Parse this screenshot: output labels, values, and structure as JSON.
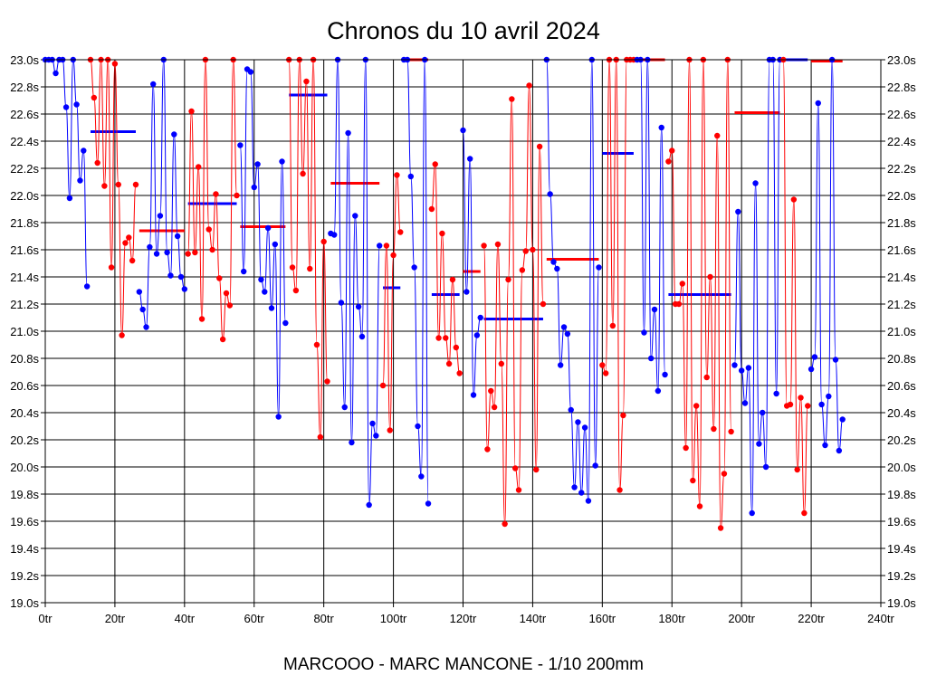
{
  "chart_data": {
    "type": "line",
    "title": "Chronos du 10 avril 2024",
    "subtitle": "MARCOOO - MARC MANCONE - 1/10 200mm",
    "xlabel": "",
    "ylabel": "",
    "xlim": [
      0,
      240
    ],
    "ylim": [
      19.0,
      23.0
    ],
    "grid": true,
    "x_ticks": [
      0,
      20,
      40,
      60,
      80,
      100,
      120,
      140,
      160,
      180,
      200,
      220,
      240
    ],
    "x_tick_labels": [
      "0tr",
      "20tr",
      "40tr",
      "60tr",
      "80tr",
      "100tr",
      "120tr",
      "140tr",
      "160tr",
      "180tr",
      "200tr",
      "220tr",
      "240tr"
    ],
    "y_ticks": [
      19.0,
      19.2,
      19.4,
      19.6,
      19.8,
      20.0,
      20.2,
      20.4,
      20.6,
      20.8,
      21.0,
      21.2,
      21.4,
      21.6,
      21.8,
      22.0,
      22.2,
      22.4,
      22.6,
      22.8,
      23.0
    ],
    "y_tick_labels": [
      "19.0s",
      "19.2s",
      "19.4s",
      "19.6s",
      "19.8s",
      "20.0s",
      "20.2s",
      "20.4s",
      "20.6s",
      "20.8s",
      "21.0s",
      "21.2s",
      "21.4s",
      "21.6s",
      "21.8s",
      "22.0s",
      "22.2s",
      "22.4s",
      "22.6s",
      "22.8s",
      "23.0s"
    ],
    "colors": {
      "blue": "#0000ff",
      "red": "#ff0000",
      "axis": "#000000",
      "grid": "#000000"
    },
    "series": [
      {
        "name": "series-1",
        "color": "#0000ff",
        "points": [
          [
            0,
            23.0
          ],
          [
            1,
            23.0
          ],
          [
            2,
            23.0
          ],
          [
            3,
            22.9
          ],
          [
            4,
            23.0
          ],
          [
            5,
            23.0
          ],
          [
            6,
            22.65
          ],
          [
            7,
            21.98
          ],
          [
            8,
            23.0
          ],
          [
            9,
            22.67
          ],
          [
            10,
            22.11
          ],
          [
            11,
            22.33
          ],
          [
            12,
            21.33
          ]
        ]
      },
      {
        "name": "series-2",
        "color": "#ff0000",
        "points": [
          [
            13,
            23.0
          ],
          [
            14,
            22.72
          ],
          [
            15,
            22.24
          ],
          [
            16,
            23.0
          ],
          [
            17,
            22.07
          ],
          [
            18,
            23.0
          ],
          [
            19,
            21.47
          ],
          [
            20,
            22.97
          ],
          [
            21,
            22.08
          ],
          [
            22,
            20.97
          ],
          [
            23,
            21.65
          ],
          [
            24,
            21.69
          ],
          [
            25,
            21.52
          ],
          [
            26,
            22.08
          ]
        ]
      },
      {
        "name": "series-3",
        "color": "#0000ff",
        "points": [
          [
            27,
            21.29
          ],
          [
            28,
            21.16
          ],
          [
            29,
            21.03
          ],
          [
            30,
            21.62
          ],
          [
            31,
            22.82
          ],
          [
            32,
            21.57
          ],
          [
            33,
            21.85
          ],
          [
            34,
            23.0
          ],
          [
            35,
            21.58
          ],
          [
            36,
            21.41
          ],
          [
            37,
            22.45
          ],
          [
            38,
            21.7
          ],
          [
            39,
            21.4
          ],
          [
            40,
            21.31
          ]
        ]
      },
      {
        "name": "series-4",
        "color": "#ff0000",
        "points": [
          [
            41,
            21.57
          ],
          [
            42,
            22.62
          ],
          [
            43,
            21.58
          ],
          [
            44,
            22.21
          ],
          [
            45,
            21.09
          ],
          [
            46,
            23.0
          ],
          [
            47,
            21.75
          ],
          [
            48,
            21.6
          ],
          [
            49,
            22.01
          ],
          [
            50,
            21.39
          ],
          [
            51,
            20.94
          ],
          [
            52,
            21.28
          ],
          [
            53,
            21.19
          ],
          [
            54,
            23.0
          ],
          [
            55,
            22.0
          ]
        ]
      },
      {
        "name": "series-5",
        "color": "#0000ff",
        "points": [
          [
            56,
            22.37
          ],
          [
            57,
            21.44
          ],
          [
            58,
            22.93
          ],
          [
            59,
            22.91
          ],
          [
            60,
            22.06
          ],
          [
            61,
            22.23
          ],
          [
            62,
            21.38
          ],
          [
            63,
            21.29
          ],
          [
            64,
            21.76
          ],
          [
            65,
            21.17
          ],
          [
            66,
            21.64
          ],
          [
            67,
            20.37
          ],
          [
            68,
            22.25
          ],
          [
            69,
            21.06
          ]
        ]
      },
      {
        "name": "series-6",
        "color": "#ff0000",
        "points": [
          [
            70,
            23.0
          ],
          [
            71,
            21.47
          ],
          [
            72,
            21.3
          ],
          [
            73,
            23.0
          ],
          [
            74,
            22.16
          ],
          [
            75,
            22.84
          ],
          [
            76,
            21.46
          ],
          [
            77,
            23.0
          ],
          [
            78,
            20.9
          ],
          [
            79,
            20.22
          ],
          [
            80,
            21.66
          ],
          [
            81,
            20.63
          ]
        ]
      },
      {
        "name": "series-7",
        "color": "#0000ff",
        "points": [
          [
            82,
            21.72
          ],
          [
            83,
            21.71
          ],
          [
            84,
            23.0
          ],
          [
            85,
            21.21
          ],
          [
            86,
            20.44
          ],
          [
            87,
            22.46
          ],
          [
            88,
            20.18
          ],
          [
            89,
            21.85
          ],
          [
            90,
            21.18
          ],
          [
            91,
            20.96
          ],
          [
            92,
            23.0
          ],
          [
            93,
            19.72
          ],
          [
            94,
            20.32
          ],
          [
            95,
            20.23
          ],
          [
            96,
            21.63
          ]
        ]
      },
      {
        "name": "series-8",
        "color": "#ff0000",
        "points": [
          [
            97,
            20.6
          ],
          [
            98,
            21.63
          ],
          [
            99,
            20.27
          ],
          [
            100,
            21.56
          ],
          [
            101,
            22.15
          ],
          [
            102,
            21.73
          ]
        ]
      },
      {
        "name": "series-9",
        "color": "#0000ff",
        "points": [
          [
            103,
            23.0
          ],
          [
            104,
            23.0
          ],
          [
            105,
            22.14
          ],
          [
            106,
            21.47
          ],
          [
            107,
            20.3
          ],
          [
            108,
            19.93
          ],
          [
            109,
            23.0
          ],
          [
            110,
            19.73
          ]
        ]
      },
      {
        "name": "series-10",
        "color": "#ff0000",
        "points": [
          [
            111,
            21.9
          ],
          [
            112,
            22.23
          ],
          [
            113,
            20.95
          ],
          [
            114,
            21.72
          ],
          [
            115,
            20.95
          ],
          [
            116,
            20.76
          ],
          [
            117,
            21.38
          ],
          [
            118,
            20.88
          ],
          [
            119,
            20.69
          ]
        ]
      },
      {
        "name": "series-11",
        "color": "#0000ff",
        "points": [
          [
            120,
            22.48
          ],
          [
            121,
            21.29
          ],
          [
            122,
            22.27
          ],
          [
            123,
            20.53
          ],
          [
            124,
            20.97
          ],
          [
            125,
            21.1
          ]
        ]
      },
      {
        "name": "series-12",
        "color": "#ff0000",
        "points": [
          [
            126,
            21.63
          ],
          [
            127,
            20.13
          ],
          [
            128,
            20.56
          ],
          [
            129,
            20.44
          ],
          [
            130,
            21.64
          ],
          [
            131,
            20.76
          ],
          [
            132,
            19.58
          ],
          [
            133,
            21.38
          ],
          [
            134,
            22.71
          ],
          [
            135,
            19.99
          ],
          [
            136,
            19.83
          ],
          [
            137,
            21.45
          ],
          [
            138,
            21.59
          ],
          [
            139,
            22.81
          ],
          [
            140,
            21.6
          ],
          [
            141,
            19.98
          ],
          [
            142,
            22.36
          ],
          [
            143,
            21.2
          ]
        ]
      },
      {
        "name": "series-13",
        "color": "#0000ff",
        "points": [
          [
            144,
            23.0
          ],
          [
            145,
            22.01
          ],
          [
            146,
            21.51
          ],
          [
            147,
            21.46
          ],
          [
            148,
            20.75
          ],
          [
            149,
            21.03
          ],
          [
            150,
            20.98
          ],
          [
            151,
            20.42
          ],
          [
            152,
            19.85
          ],
          [
            153,
            20.33
          ],
          [
            154,
            19.81
          ],
          [
            155,
            20.29
          ],
          [
            156,
            19.75
          ],
          [
            157,
            23.0
          ],
          [
            158,
            20.01
          ],
          [
            159,
            21.47
          ]
        ]
      },
      {
        "name": "series-14",
        "color": "#ff0000",
        "points": [
          [
            160,
            20.75
          ],
          [
            161,
            20.69
          ],
          [
            162,
            23.0
          ],
          [
            163,
            21.04
          ],
          [
            164,
            23.0
          ],
          [
            165,
            19.83
          ],
          [
            166,
            20.38
          ],
          [
            167,
            23.0
          ],
          [
            168,
            23.0
          ],
          [
            169,
            23.0
          ]
        ]
      },
      {
        "name": "series-15",
        "color": "#0000ff",
        "points": [
          [
            170,
            23.0
          ],
          [
            171,
            23.0
          ],
          [
            172,
            20.99
          ],
          [
            173,
            23.0
          ],
          [
            174,
            20.8
          ],
          [
            175,
            21.16
          ],
          [
            176,
            20.56
          ],
          [
            177,
            22.5
          ],
          [
            178,
            20.68
          ]
        ]
      },
      {
        "name": "series-16",
        "color": "#ff0000",
        "points": [
          [
            179,
            22.25
          ],
          [
            180,
            22.33
          ],
          [
            181,
            21.2
          ],
          [
            182,
            21.2
          ],
          [
            183,
            21.35
          ],
          [
            184,
            20.14
          ],
          [
            185,
            23.0
          ],
          [
            186,
            19.9
          ],
          [
            187,
            20.45
          ],
          [
            188,
            19.71
          ],
          [
            189,
            23.0
          ],
          [
            190,
            20.66
          ],
          [
            191,
            21.4
          ],
          [
            192,
            20.28
          ],
          [
            193,
            22.44
          ],
          [
            194,
            19.55
          ],
          [
            195,
            19.95
          ],
          [
            196,
            23.0
          ],
          [
            197,
            20.26
          ]
        ]
      },
      {
        "name": "series-17",
        "color": "#0000ff",
        "points": [
          [
            198,
            20.75
          ],
          [
            199,
            21.88
          ],
          [
            200,
            20.71
          ],
          [
            201,
            20.47
          ],
          [
            202,
            20.73
          ],
          [
            203,
            19.66
          ],
          [
            204,
            22.09
          ],
          [
            205,
            20.17
          ],
          [
            206,
            20.4
          ],
          [
            207,
            20.0
          ],
          [
            208,
            23.0
          ],
          [
            209,
            23.0
          ],
          [
            210,
            20.54
          ],
          [
            211,
            23.0
          ]
        ]
      },
      {
        "name": "series-18",
        "color": "#ff0000",
        "points": [
          [
            212,
            23.0
          ],
          [
            213,
            20.45
          ],
          [
            214,
            20.46
          ],
          [
            215,
            21.97
          ],
          [
            216,
            19.98
          ],
          [
            217,
            20.51
          ],
          [
            218,
            19.66
          ],
          [
            219,
            20.45
          ]
        ]
      },
      {
        "name": "series-19",
        "color": "#0000ff",
        "points": [
          [
            220,
            20.72
          ],
          [
            221,
            20.81
          ],
          [
            222,
            22.68
          ],
          [
            223,
            20.46
          ],
          [
            224,
            20.16
          ],
          [
            225,
            20.52
          ],
          [
            226,
            23.0
          ],
          [
            227,
            20.79
          ],
          [
            228,
            20.12
          ],
          [
            229,
            20.35
          ]
        ]
      }
    ],
    "averages": [
      {
        "color": "#0000ff",
        "x0": 13,
        "x1": 26,
        "y": 22.47
      },
      {
        "color": "#ff0000",
        "x0": 27,
        "x1": 40,
        "y": 21.74
      },
      {
        "color": "#0000ff",
        "x0": 41,
        "x1": 55,
        "y": 21.94
      },
      {
        "color": "#ff0000",
        "x0": 56,
        "x1": 69,
        "y": 21.77
      },
      {
        "color": "#0000ff",
        "x0": 70,
        "x1": 81,
        "y": 22.74
      },
      {
        "color": "#ff0000",
        "x0": 82,
        "x1": 96,
        "y": 22.09
      },
      {
        "color": "#0000ff",
        "x0": 97,
        "x1": 102,
        "y": 21.32
      },
      {
        "color": "#ff0000",
        "x0": 103,
        "x1": 110,
        "y": 23.0
      },
      {
        "color": "#0000ff",
        "x0": 111,
        "x1": 119,
        "y": 21.27
      },
      {
        "color": "#ff0000",
        "x0": 120,
        "x1": 125,
        "y": 21.44
      },
      {
        "color": "#0000ff",
        "x0": 126,
        "x1": 143,
        "y": 21.09
      },
      {
        "color": "#ff0000",
        "x0": 144,
        "x1": 159,
        "y": 21.53
      },
      {
        "color": "#0000ff",
        "x0": 160,
        "x1": 169,
        "y": 22.31
      },
      {
        "color": "#ff0000",
        "x0": 170,
        "x1": 178,
        "y": 23.0
      },
      {
        "color": "#0000ff",
        "x0": 179,
        "x1": 197,
        "y": 21.27
      },
      {
        "color": "#ff0000",
        "x0": 198,
        "x1": 211,
        "y": 22.61
      },
      {
        "color": "#0000ff",
        "x0": 212,
        "x1": 219,
        "y": 23.0
      },
      {
        "color": "#ff0000",
        "x0": 220,
        "x1": 229,
        "y": 22.99
      }
    ]
  }
}
